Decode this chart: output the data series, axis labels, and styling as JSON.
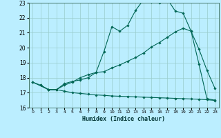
{
  "title": "",
  "xlabel": "Humidex (Indice chaleur)",
  "bg_color": "#bbeeff",
  "grid_color": "#99cccc",
  "line_color": "#006655",
  "xlim": [
    -0.5,
    23.5
  ],
  "ylim": [
    16,
    23
  ],
  "yticks": [
    16,
    17,
    18,
    19,
    20,
    21,
    22,
    23
  ],
  "xticks": [
    0,
    1,
    2,
    3,
    4,
    5,
    6,
    7,
    8,
    9,
    10,
    11,
    12,
    13,
    14,
    15,
    16,
    17,
    18,
    19,
    20,
    21,
    22,
    23
  ],
  "curve1_x": [
    0,
    1,
    2,
    3,
    4,
    5,
    6,
    7,
    8,
    9,
    10,
    11,
    12,
    13,
    14,
    15,
    16,
    17,
    18,
    19,
    20,
    21,
    22,
    23
  ],
  "curve1_y": [
    17.7,
    17.5,
    17.2,
    17.2,
    17.6,
    17.75,
    17.85,
    18.0,
    18.35,
    19.75,
    21.4,
    21.1,
    21.5,
    22.5,
    23.2,
    23.05,
    23.0,
    23.25,
    22.45,
    22.3,
    21.1,
    18.9,
    16.6,
    16.5
  ],
  "curve2_x": [
    0,
    2,
    3,
    4,
    5,
    6,
    7,
    8,
    9,
    10,
    11,
    12,
    13,
    14,
    15,
    16,
    17,
    18,
    19,
    20,
    21,
    22,
    23
  ],
  "curve2_y": [
    17.7,
    17.2,
    17.2,
    17.5,
    17.7,
    18.0,
    18.2,
    18.35,
    18.4,
    18.65,
    18.85,
    19.1,
    19.35,
    19.65,
    20.05,
    20.35,
    20.7,
    21.05,
    21.3,
    21.1,
    19.9,
    18.5,
    17.3
  ],
  "curve3_x": [
    1,
    2,
    3,
    4,
    5,
    6,
    7,
    8,
    9,
    10,
    11,
    12,
    13,
    14,
    15,
    16,
    17,
    18,
    19,
    20,
    21,
    22,
    23
  ],
  "curve3_y": [
    17.5,
    17.2,
    17.2,
    17.1,
    17.0,
    16.95,
    16.9,
    16.85,
    16.82,
    16.78,
    16.76,
    16.74,
    16.72,
    16.7,
    16.68,
    16.66,
    16.64,
    16.62,
    16.6,
    16.58,
    16.56,
    16.53,
    16.48
  ]
}
